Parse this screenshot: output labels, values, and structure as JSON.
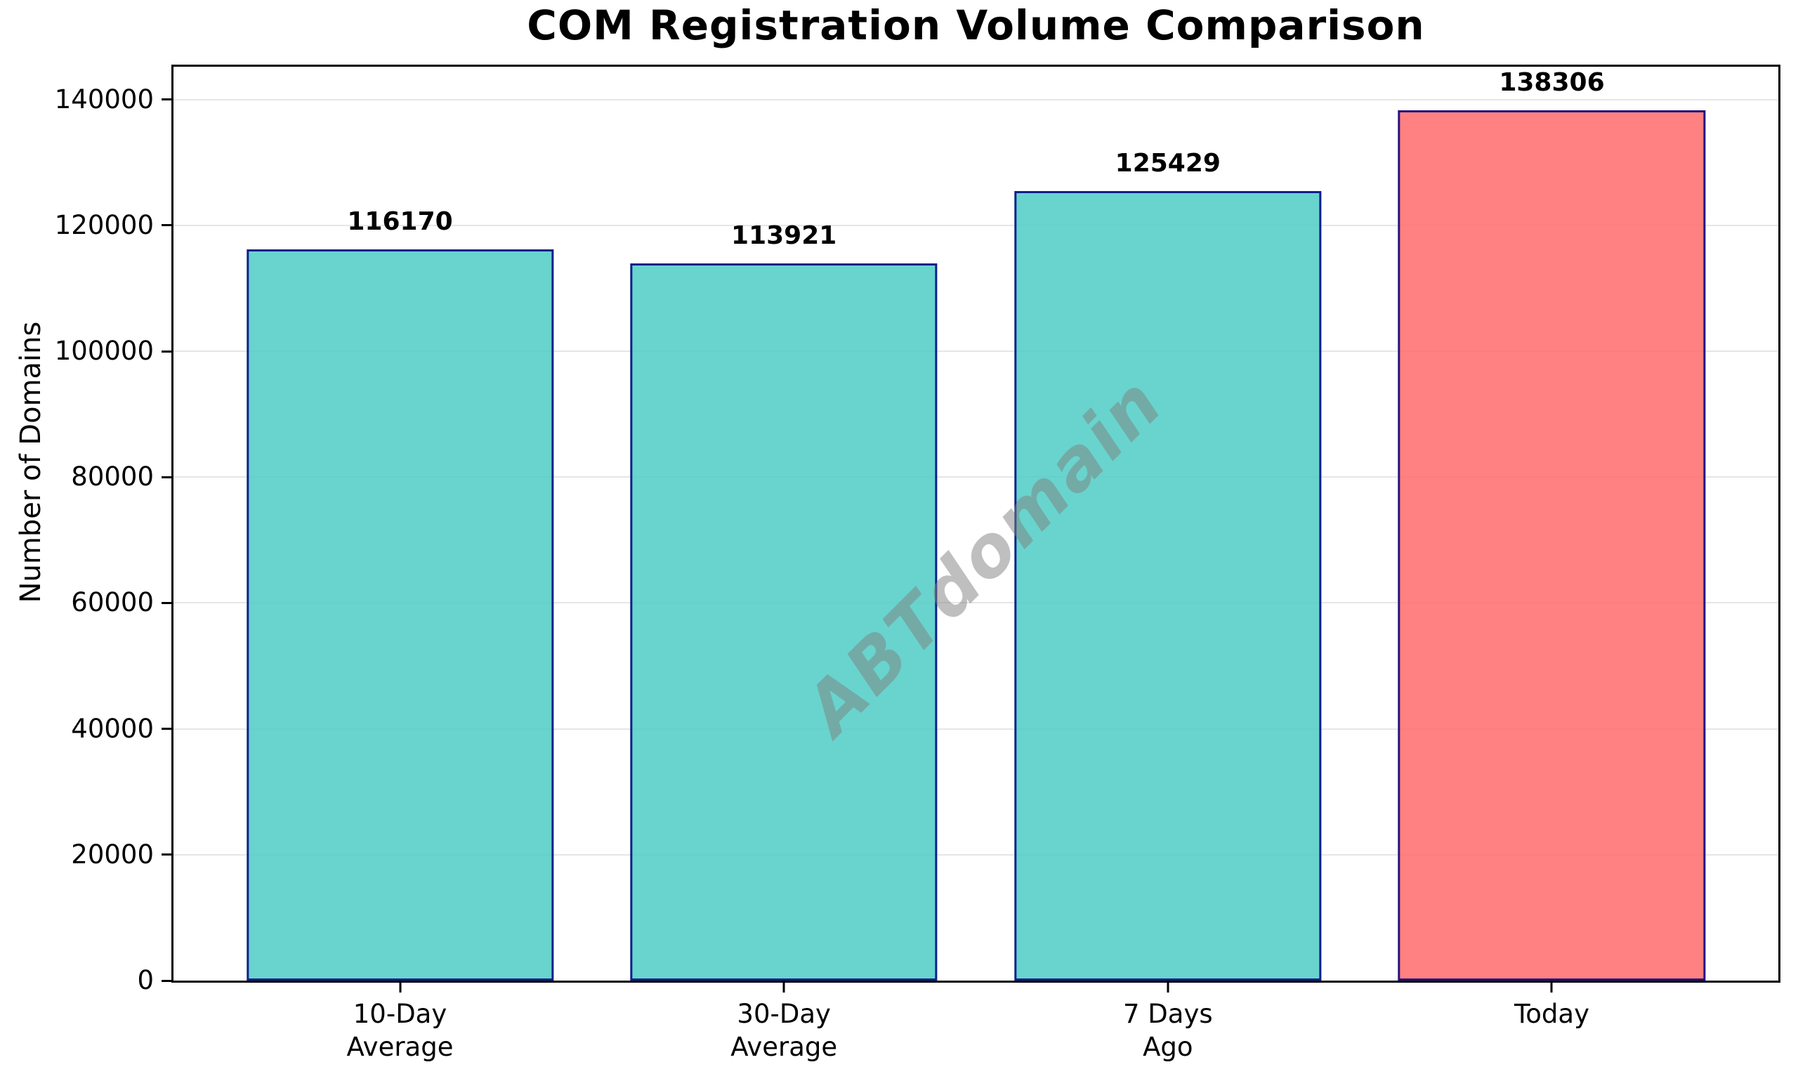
{
  "chart_data": {
    "type": "bar",
    "title": "COM Registration Volume Comparison",
    "xlabel": "",
    "ylabel": "Number of Domains",
    "categories": [
      "10-Day\nAverage",
      "30-Day\nAverage",
      "7 Days\nAgo",
      "Today"
    ],
    "values": [
      116170,
      113921,
      125429,
      138306
    ],
    "bar_labels": [
      "116170",
      "113921",
      "125429",
      "138306"
    ],
    "series_note": "single series; first three bars teal, 'Today' bar highlighted salmon",
    "bar_colors": [
      "rgba(78,205,196,0.85)",
      "rgba(78,205,196,0.85)",
      "rgba(78,205,196,0.85)",
      "rgba(255,107,107,0.85)"
    ],
    "bar_edge_color": "rgba(0,0,128,0.85)",
    "bar_width_fraction": 0.8,
    "xlim": [
      -0.59,
      3.59
    ],
    "ylim": [
      0,
      145221
    ],
    "yticks": [
      0,
      20000,
      40000,
      60000,
      80000,
      100000,
      120000,
      140000
    ],
    "grid": "horizontal",
    "legend": "none",
    "watermark": "ABTdomain",
    "colors": {
      "grid": "#e6e6e6",
      "spine": "#000000",
      "text": "#000000",
      "watermark": "rgba(128,128,128,0.5)",
      "teal": "#4ECDC4",
      "salmon": "#FF6B6B",
      "edge_navy": "#000080"
    }
  }
}
